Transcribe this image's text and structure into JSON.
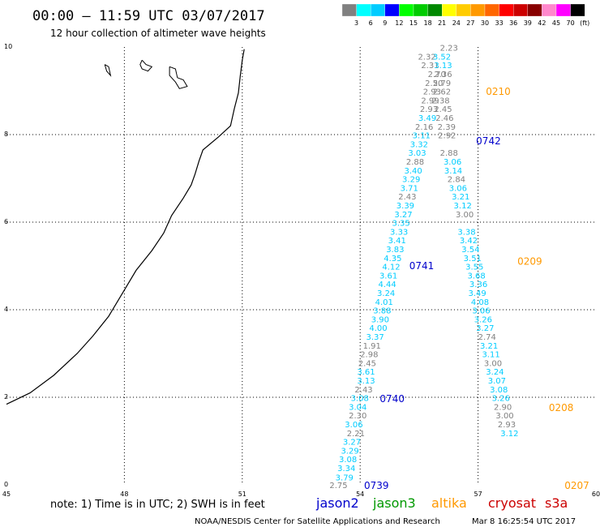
{
  "header": {
    "title": "00:00 – 11:59 UTC 03/07/2017",
    "subtitle": "12 hour collection of altimeter wave heights"
  },
  "colorbar": {
    "labels": [
      "3",
      "6",
      "9",
      "12",
      "15",
      "18",
      "21",
      "24",
      "27",
      "30",
      "33",
      "36",
      "39",
      "42",
      "45",
      "70",
      "(ft)"
    ],
    "colors": [
      "#808080",
      "#00ffff",
      "#00ccff",
      "#0000ff",
      "#00ff00",
      "#00cc00",
      "#008800",
      "#ffff00",
      "#ffcc00",
      "#ff9900",
      "#ff6600",
      "#ff0000",
      "#cc0000",
      "#880000",
      "#ff88cc",
      "#ff00ff",
      "#000000"
    ]
  },
  "axes": {
    "x_ticks": [
      "45",
      "48",
      "51",
      "54",
      "57",
      "60"
    ],
    "y_ticks": [
      "0",
      "2",
      "4",
      "6",
      "8",
      "10"
    ],
    "xlim": [
      45,
      60
    ],
    "ylim": [
      0,
      10
    ]
  },
  "note": "note: 1) Time is in UTC; 2) SWH is in feet",
  "satellites": [
    {
      "name": "jason2",
      "color": "#0000cc"
    },
    {
      "name": "jason3",
      "color": "#009900"
    },
    {
      "name": "altika",
      "color": "#ff9900"
    },
    {
      "name": "cryosat",
      "color": "#cc0000"
    },
    {
      "name": "s3a",
      "color": "#cc0000"
    }
  ],
  "footer": {
    "credit": "NOAA/NESDIS Center for Satellite Applications and Research",
    "timestamp": "Mar  8 16:25:54 UTC 2017"
  },
  "coastline": [
    [
      45.0,
      1.84
    ],
    [
      45.6,
      2.1
    ],
    [
      46.2,
      2.5
    ],
    [
      46.8,
      3.0
    ],
    [
      47.2,
      3.4
    ],
    [
      47.6,
      3.85
    ],
    [
      48.0,
      4.45
    ],
    [
      48.3,
      4.9
    ],
    [
      48.7,
      5.35
    ],
    [
      49.0,
      5.75
    ],
    [
      49.2,
      6.15
    ],
    [
      49.5,
      6.55
    ],
    [
      49.7,
      6.85
    ],
    [
      49.8,
      7.1
    ],
    [
      49.9,
      7.4
    ],
    [
      50.0,
      7.65
    ],
    [
      50.4,
      7.95
    ],
    [
      50.7,
      8.2
    ],
    [
      50.8,
      8.6
    ],
    [
      50.9,
      8.95
    ],
    [
      50.95,
      9.35
    ],
    [
      51.0,
      9.7
    ],
    [
      51.05,
      9.95
    ]
  ],
  "islands": [
    [
      [
        47.5,
        9.6
      ],
      [
        47.55,
        9.45
      ],
      [
        47.65,
        9.35
      ],
      [
        47.6,
        9.55
      ],
      [
        47.5,
        9.6
      ]
    ],
    [
      [
        48.45,
        9.7
      ],
      [
        48.55,
        9.6
      ],
      [
        48.7,
        9.55
      ],
      [
        48.6,
        9.45
      ],
      [
        48.45,
        9.5
      ],
      [
        48.4,
        9.6
      ],
      [
        48.45,
        9.7
      ]
    ],
    [
      [
        49.15,
        9.55
      ],
      [
        49.3,
        9.5
      ],
      [
        49.35,
        9.3
      ],
      [
        49.5,
        9.25
      ],
      [
        49.6,
        9.1
      ],
      [
        49.4,
        9.05
      ],
      [
        49.3,
        9.2
      ],
      [
        49.15,
        9.35
      ],
      [
        49.15,
        9.55
      ]
    ]
  ],
  "passes": [
    {
      "id": "0739",
      "color": "#0000cc",
      "x": 54.1,
      "y": -0.02
    },
    {
      "id": "0740",
      "color": "#0000cc",
      "x": 54.5,
      "y": 1.96
    },
    {
      "id": "0741",
      "color": "#0000cc",
      "x": 55.25,
      "y": 5.0
    },
    {
      "id": "0742",
      "color": "#0000cc",
      "x": 56.95,
      "y": 7.85
    },
    {
      "id": "0210",
      "color": "#ff9900",
      "x": 57.2,
      "y": 8.98
    },
    {
      "id": "0209",
      "color": "#ff9900",
      "x": 58.0,
      "y": 5.1
    },
    {
      "id": "0208",
      "color": "#ff9900",
      "x": 58.8,
      "y": 1.76
    },
    {
      "id": "0207",
      "color": "#ff9900",
      "x": 59.2,
      "y": -0.02
    }
  ],
  "swh_observations": [
    {
      "v": "2.75",
      "x": 53.22,
      "y": -0.02,
      "c": "#808080"
    },
    {
      "v": "3.79",
      "x": 53.37,
      "y": 0.16,
      "c": "#00ccff"
    },
    {
      "v": "3.34",
      "x": 53.42,
      "y": 0.37,
      "c": "#00ccff"
    },
    {
      "v": "3.08",
      "x": 53.46,
      "y": 0.57,
      "c": "#00ccff"
    },
    {
      "v": "3.29",
      "x": 53.51,
      "y": 0.77,
      "c": "#00ccff"
    },
    {
      "v": "3.27",
      "x": 53.56,
      "y": 0.97,
      "c": "#00ccff"
    },
    {
      "v": "3.06",
      "x": 53.61,
      "y": 1.37,
      "c": "#00ccff"
    },
    {
      "v": "2.21",
      "x": 53.66,
      "y": 1.17,
      "c": "#808080"
    },
    {
      "v": "2.30",
      "x": 53.71,
      "y": 1.57,
      "c": "#808080"
    },
    {
      "v": "3.04",
      "x": 53.71,
      "y": 1.77,
      "c": "#00ccff"
    },
    {
      "v": "3.08",
      "x": 53.76,
      "y": 1.97,
      "c": "#00ccff"
    },
    {
      "v": "2.43",
      "x": 53.86,
      "y": 2.17,
      "c": "#808080"
    },
    {
      "v": "3.13",
      "x": 53.92,
      "y": 2.37,
      "c": "#00ccff"
    },
    {
      "v": "3.61",
      "x": 53.92,
      "y": 2.57,
      "c": "#00ccff"
    },
    {
      "v": "2.45",
      "x": 53.95,
      "y": 2.77,
      "c": "#808080"
    },
    {
      "v": "2.98",
      "x": 54.0,
      "y": 2.97,
      "c": "#808080"
    },
    {
      "v": "1.91",
      "x": 54.07,
      "y": 3.17,
      "c": "#808080"
    },
    {
      "v": "3.37",
      "x": 54.15,
      "y": 3.37,
      "c": "#00ccff"
    },
    {
      "v": "4.00",
      "x": 54.23,
      "y": 3.57,
      "c": "#00ccff"
    },
    {
      "v": "3.90",
      "x": 54.28,
      "y": 3.77,
      "c": "#00ccff"
    },
    {
      "v": "3.88",
      "x": 54.33,
      "y": 3.97,
      "c": "#00ccff"
    },
    {
      "v": "4.01",
      "x": 54.38,
      "y": 4.17,
      "c": "#00ccff"
    },
    {
      "v": "4.44",
      "x": 54.46,
      "y": 4.57,
      "c": "#00ccff"
    },
    {
      "v": "3.24",
      "x": 54.43,
      "y": 4.37,
      "c": "#00ccff"
    },
    {
      "v": "3.61",
      "x": 54.49,
      "y": 4.77,
      "c": "#00ccff"
    },
    {
      "v": "4.12",
      "x": 54.56,
      "y": 4.97,
      "c": "#00ccff"
    },
    {
      "v": "4.35",
      "x": 54.6,
      "y": 5.17,
      "c": "#00ccff"
    },
    {
      "v": "3.83",
      "x": 54.66,
      "y": 5.37,
      "c": "#00ccff"
    },
    {
      "v": "3.41",
      "x": 54.71,
      "y": 5.57,
      "c": "#00ccff"
    },
    {
      "v": "3.33",
      "x": 54.76,
      "y": 5.77,
      "c": "#00ccff"
    },
    {
      "v": "3.35",
      "x": 54.81,
      "y": 5.97,
      "c": "#00ccff"
    },
    {
      "v": "3.27",
      "x": 54.87,
      "y": 6.17,
      "c": "#00ccff"
    },
    {
      "v": "3.39",
      "x": 54.92,
      "y": 6.37,
      "c": "#00ccff"
    },
    {
      "v": "2.43",
      "x": 54.97,
      "y": 6.57,
      "c": "#808080"
    },
    {
      "v": "3.71",
      "x": 55.02,
      "y": 6.77,
      "c": "#00ccff"
    },
    {
      "v": "3.29",
      "x": 55.07,
      "y": 6.97,
      "c": "#00ccff"
    },
    {
      "v": "3.40",
      "x": 55.12,
      "y": 7.17,
      "c": "#00ccff"
    },
    {
      "v": "2.88",
      "x": 55.17,
      "y": 7.37,
      "c": "#808080"
    },
    {
      "v": "3.03",
      "x": 55.22,
      "y": 7.57,
      "c": "#00ccff"
    },
    {
      "v": "3.32",
      "x": 55.27,
      "y": 7.77,
      "c": "#00ccff"
    },
    {
      "v": "3.11",
      "x": 55.33,
      "y": 7.97,
      "c": "#00ccff"
    },
    {
      "v": "2.16",
      "x": 55.4,
      "y": 8.17,
      "c": "#808080"
    },
    {
      "v": "3.49",
      "x": 55.48,
      "y": 8.37,
      "c": "#00ccff"
    },
    {
      "v": "2.93",
      "x": 55.52,
      "y": 8.57,
      "c": "#808080"
    },
    {
      "v": "2.99",
      "x": 55.55,
      "y": 8.77,
      "c": "#808080"
    },
    {
      "v": "2.93",
      "x": 55.6,
      "y": 8.97,
      "c": "#808080"
    },
    {
      "v": "2.50",
      "x": 55.65,
      "y": 9.17,
      "c": "#808080"
    },
    {
      "v": "2.70",
      "x": 55.72,
      "y": 9.37,
      "c": "#808080"
    },
    {
      "v": "2.31",
      "x": 55.55,
      "y": 9.57,
      "c": "#808080"
    },
    {
      "v": "2.32",
      "x": 55.47,
      "y": 9.77,
      "c": "#808080"
    },
    {
      "v": "2.23",
      "x": 56.03,
      "y": 9.97,
      "c": "#808080"
    },
    {
      "v": "3.52",
      "x": 55.85,
      "y": 9.77,
      "c": "#00ccff"
    },
    {
      "v": "3.13",
      "x": 55.88,
      "y": 9.57,
      "c": "#00ccff"
    },
    {
      "v": "2.36",
      "x": 55.88,
      "y": 9.37,
      "c": "#808080"
    },
    {
      "v": "2.79",
      "x": 55.85,
      "y": 9.17,
      "c": "#808080"
    },
    {
      "v": "2.62",
      "x": 55.85,
      "y": 8.97,
      "c": "#808080"
    },
    {
      "v": "2.38",
      "x": 55.82,
      "y": 8.77,
      "c": "#808080"
    },
    {
      "v": "2.45",
      "x": 55.88,
      "y": 8.57,
      "c": "#808080"
    },
    {
      "v": "2.46",
      "x": 55.92,
      "y": 8.37,
      "c": "#808080"
    },
    {
      "v": "2.39",
      "x": 55.97,
      "y": 8.17,
      "c": "#808080"
    },
    {
      "v": "2.92",
      "x": 55.98,
      "y": 7.97,
      "c": "#808080"
    },
    {
      "v": "2.88",
      "x": 56.03,
      "y": 7.57,
      "c": "#808080"
    },
    {
      "v": "3.06",
      "x": 56.12,
      "y": 7.37,
      "c": "#00ccff"
    },
    {
      "v": "3.14",
      "x": 56.14,
      "y": 7.17,
      "c": "#00ccff"
    },
    {
      "v": "2.84",
      "x": 56.22,
      "y": 6.97,
      "c": "#808080"
    },
    {
      "v": "3.06",
      "x": 56.26,
      "y": 6.77,
      "c": "#00ccff"
    },
    {
      "v": "3.21",
      "x": 56.33,
      "y": 6.57,
      "c": "#00ccff"
    },
    {
      "v": "3.12",
      "x": 56.38,
      "y": 6.37,
      "c": "#00ccff"
    },
    {
      "v": "3.00",
      "x": 56.43,
      "y": 6.17,
      "c": "#808080"
    },
    {
      "v": "3.38",
      "x": 56.48,
      "y": 5.77,
      "c": "#00ccff"
    },
    {
      "v": "3.42",
      "x": 56.53,
      "y": 5.57,
      "c": "#00ccff"
    },
    {
      "v": "3.54",
      "x": 56.58,
      "y": 5.37,
      "c": "#00ccff"
    },
    {
      "v": "3.51",
      "x": 56.63,
      "y": 5.17,
      "c": "#00ccff"
    },
    {
      "v": "3.55",
      "x": 56.68,
      "y": 4.97,
      "c": "#00ccff"
    },
    {
      "v": "3.68",
      "x": 56.73,
      "y": 4.77,
      "c": "#00ccff"
    },
    {
      "v": "3.36",
      "x": 56.78,
      "y": 4.57,
      "c": "#00ccff"
    },
    {
      "v": "3.49",
      "x": 56.75,
      "y": 4.37,
      "c": "#00ccff"
    },
    {
      "v": "4.08",
      "x": 56.82,
      "y": 4.17,
      "c": "#00ccff"
    },
    {
      "v": "3.06",
      "x": 56.85,
      "y": 3.97,
      "c": "#00ccff"
    },
    {
      "v": "3.26",
      "x": 56.9,
      "y": 3.77,
      "c": "#00ccff"
    },
    {
      "v": "3.27",
      "x": 56.95,
      "y": 3.57,
      "c": "#00ccff"
    },
    {
      "v": "2.74",
      "x": 57.0,
      "y": 3.37,
      "c": "#808080"
    },
    {
      "v": "3.21",
      "x": 57.05,
      "y": 3.17,
      "c": "#00ccff"
    },
    {
      "v": "3.11",
      "x": 57.1,
      "y": 2.97,
      "c": "#00ccff"
    },
    {
      "v": "3.00",
      "x": 57.15,
      "y": 2.77,
      "c": "#808080"
    },
    {
      "v": "3.24",
      "x": 57.2,
      "y": 2.57,
      "c": "#00ccff"
    },
    {
      "v": "3.07",
      "x": 57.25,
      "y": 2.37,
      "c": "#00ccff"
    },
    {
      "v": "3.08",
      "x": 57.3,
      "y": 2.17,
      "c": "#00ccff"
    },
    {
      "v": "3.26",
      "x": 57.35,
      "y": 1.97,
      "c": "#00ccff"
    },
    {
      "v": "2.90",
      "x": 57.4,
      "y": 1.77,
      "c": "#808080"
    },
    {
      "v": "3.00",
      "x": 57.45,
      "y": 1.57,
      "c": "#808080"
    },
    {
      "v": "2.93",
      "x": 57.5,
      "y": 1.37,
      "c": "#808080"
    },
    {
      "v": "3.12",
      "x": 57.57,
      "y": 1.17,
      "c": "#00ccff"
    }
  ]
}
